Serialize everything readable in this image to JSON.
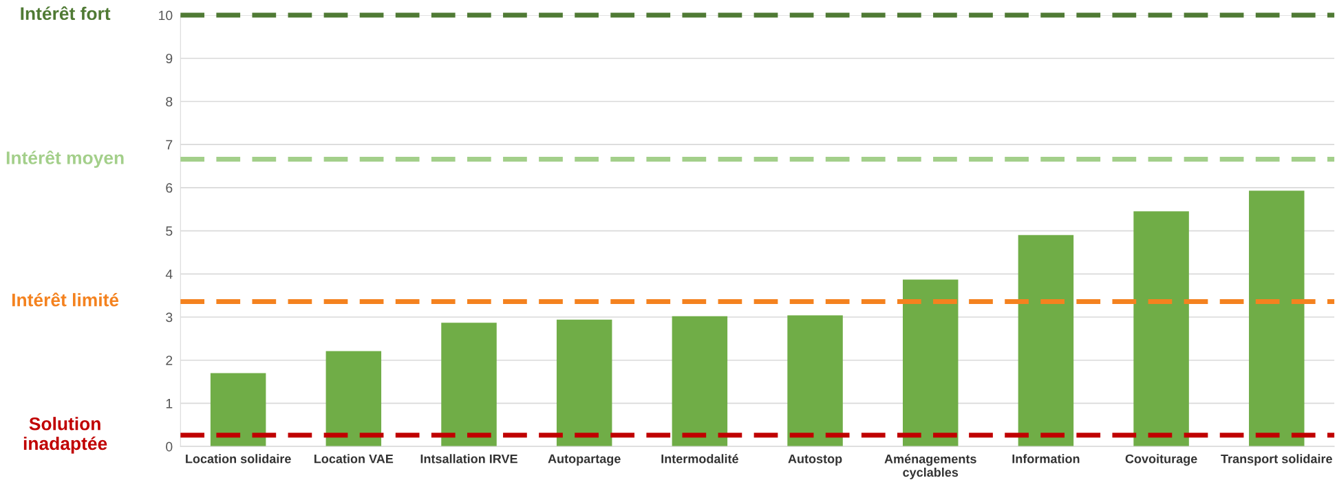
{
  "chart_data": {
    "type": "bar",
    "categories": [
      "Location solidaire",
      "Location VAE",
      "Intsallation IRVE",
      "Autopartage",
      "Intermodalité",
      "Autostop",
      "Aménagements\ncyclables",
      "Information",
      "Covoiturage",
      "Transport solidaire"
    ],
    "values": [
      1.7,
      2.21,
      2.87,
      2.94,
      3.02,
      3.04,
      3.87,
      4.9,
      5.45,
      5.93
    ],
    "color": "#70ad47",
    "ylim": [
      0,
      10
    ],
    "yticks": [
      0,
      1,
      2,
      3,
      4,
      5,
      6,
      7,
      8,
      9,
      10
    ],
    "grid": "y",
    "ref_lines": [
      {
        "axis": "y",
        "value": 10,
        "label": "Intérêt fort",
        "color": "#4f7a34",
        "line_style": "dashed"
      },
      {
        "axis": "y",
        "value": 6.66,
        "label": "Intérêt moyen",
        "color": "#a3cf8a",
        "line_style": "dashed"
      },
      {
        "axis": "y",
        "value": 3.36,
        "label": "Intérêt limité",
        "color": "#f4821f",
        "line_style": "dashed"
      },
      {
        "axis": "y",
        "value": 0.26,
        "label": "Solution\ninadaptée",
        "color": "#c00000",
        "line_style": "dashed"
      }
    ]
  }
}
